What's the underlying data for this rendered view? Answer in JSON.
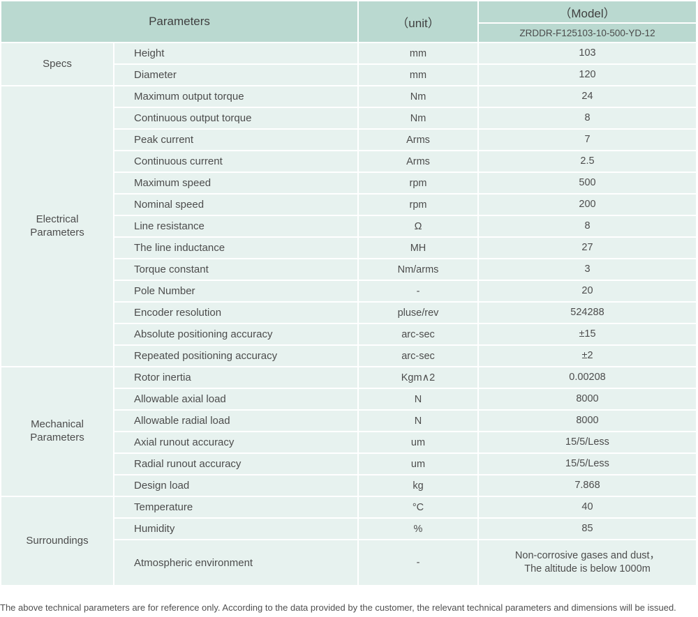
{
  "colors": {
    "header_bg": "#bad9d0",
    "row_bg": "#e7f2ef",
    "grid_gap": "#ffffff",
    "text": "#4a4a4a"
  },
  "header": {
    "parameters_label": "Parameters",
    "unit_label": "（unit）",
    "model_label": "（Model）",
    "model_value": "ZRDDR-F125103-10-500-YD-12"
  },
  "sections": [
    {
      "category": "Specs",
      "rows": [
        {
          "name": "Height",
          "unit": "mm",
          "value": "103"
        },
        {
          "name": "Diameter",
          "unit": "mm",
          "value": "120"
        }
      ]
    },
    {
      "category": "Electrical\nParameters",
      "rows": [
        {
          "name": "Maximum output torque",
          "unit": "Nm",
          "value": "24"
        },
        {
          "name": "Continuous output torque",
          "unit": "Nm",
          "value": "8"
        },
        {
          "name": "Peak current",
          "unit": "Arms",
          "value": "7"
        },
        {
          "name": "Continuous current",
          "unit": "Arms",
          "value": "2.5"
        },
        {
          "name": "Maximum speed",
          "unit": "rpm",
          "value": "500"
        },
        {
          "name": "Nominal speed",
          "unit": "rpm",
          "value": "200"
        },
        {
          "name": "Line resistance",
          "unit": "Ω",
          "value": "8"
        },
        {
          "name": "The line inductance",
          "unit": "MH",
          "value": "27"
        },
        {
          "name": "Torque constant",
          "unit": "Nm/arms",
          "value": "3"
        },
        {
          "name": "Pole Number",
          "unit": "-",
          "value": "20"
        },
        {
          "name": "Encoder resolution",
          "unit": "pluse/rev",
          "value": "524288"
        },
        {
          "name": "Absolute positioning accuracy",
          "unit": "arc-sec",
          "value": "±15"
        },
        {
          "name": "Repeated positioning accuracy",
          "unit": "arc-sec",
          "value": "±2"
        }
      ]
    },
    {
      "category": "Mechanical\nParameters",
      "rows": [
        {
          "name": "Rotor inertia",
          "unit": "Kgm∧2",
          "value": "0.00208"
        },
        {
          "name": "Allowable axial load",
          "unit": "N",
          "value": "8000"
        },
        {
          "name": "Allowable radial load",
          "unit": "N",
          "value": "8000"
        },
        {
          "name": "Axial runout accuracy",
          "unit": "um",
          "value": "15/5/Less"
        },
        {
          "name": "Radial runout accuracy",
          "unit": "um",
          "value": "15/5/Less"
        },
        {
          "name": "Design load",
          "unit": "kg",
          "value": "7.868"
        }
      ]
    },
    {
      "category": "Surroundings",
      "rows": [
        {
          "name": "Temperature",
          "unit": "°C",
          "value": "40"
        },
        {
          "name": "Humidity",
          "unit": "%",
          "value": "85"
        },
        {
          "name": "Atmospheric environment",
          "unit": "-",
          "value": "Non-corrosive gases and dust，\nThe altitude is below 1000m",
          "tall": true
        }
      ]
    }
  ],
  "footer_note": "The above technical parameters are for reference only. According to the data provided by the customer, the relevant technical parameters and dimensions will be issued."
}
